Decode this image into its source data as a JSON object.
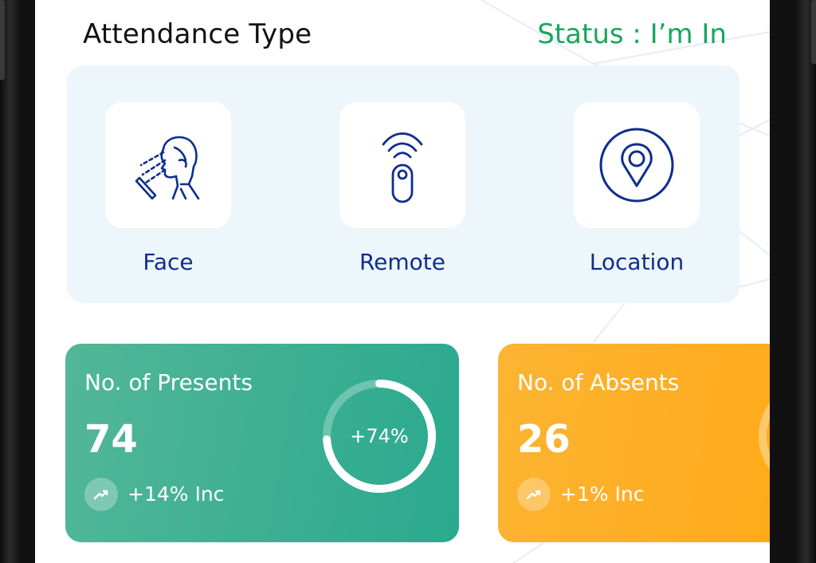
{
  "header": {
    "title": "Attendance Type",
    "status": "Status : I’m In"
  },
  "attendance_types": [
    {
      "label": "Face",
      "icon": "face-scan-icon"
    },
    {
      "label": "Remote",
      "icon": "remote-signal-icon"
    },
    {
      "label": "Location",
      "icon": "location-pin-icon"
    }
  ],
  "stats": {
    "presents": {
      "label": "No. of Presents",
      "value": "74",
      "ring_text": "+74%",
      "ring_fraction": 0.74,
      "trend": "+14% Inc",
      "trend_icon": "trending-up-icon",
      "color": "#2aa98e"
    },
    "absents": {
      "label": "No. of Absents",
      "value": "26",
      "trend": "+1% Inc",
      "trend_icon": "trending-up-icon",
      "color": "#ffa915"
    }
  },
  "colors": {
    "status_green": "#1aa55d",
    "icon_navy": "#0e2d8e",
    "panel_bg": "#edf7fb"
  }
}
